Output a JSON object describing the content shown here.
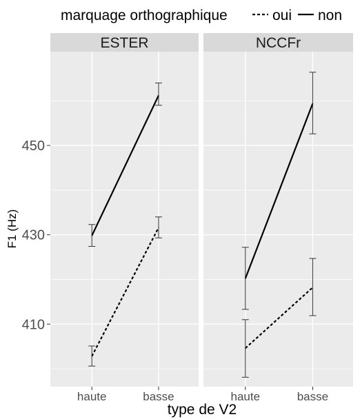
{
  "chart_data": {
    "type": "line",
    "xlabel": "type de V2",
    "ylabel": "F1 (Hz)",
    "categories": [
      "haute",
      "basse"
    ],
    "y_ticks": [
      410,
      430,
      450
    ],
    "ylim": [
      396,
      471
    ],
    "grid": true,
    "legend": {
      "title": "marquage orthographique",
      "position": "top",
      "entries": [
        {
          "label": "oui",
          "linetype": "dashed"
        },
        {
          "label": "non",
          "linetype": "solid"
        }
      ]
    },
    "panels": [
      {
        "title": "ESTER",
        "series": [
          {
            "name": "oui",
            "values": [
              402.8,
              431.6
            ],
            "ci_low": [
              400.6,
              429.3
            ],
            "ci_high": [
              405.1,
              434.0
            ]
          },
          {
            "name": "non",
            "values": [
              429.8,
              461.2
            ],
            "ci_low": [
              427.4,
              459.0
            ],
            "ci_high": [
              432.3,
              464.0
            ]
          }
        ]
      },
      {
        "title": "NCCFr",
        "series": [
          {
            "name": "oui",
            "values": [
              404.6,
              418.2
            ],
            "ci_low": [
              398.1,
              411.9
            ],
            "ci_high": [
              411.0,
              424.7
            ]
          },
          {
            "name": "non",
            "values": [
              420.2,
              459.4
            ],
            "ci_low": [
              413.3,
              452.6
            ],
            "ci_high": [
              427.2,
              466.4
            ]
          }
        ]
      }
    ],
    "colors": {
      "panel_bg": "#ebebeb",
      "grid": "#ffffff",
      "strip_bg": "#d9d9d9",
      "line": "#000000"
    }
  }
}
